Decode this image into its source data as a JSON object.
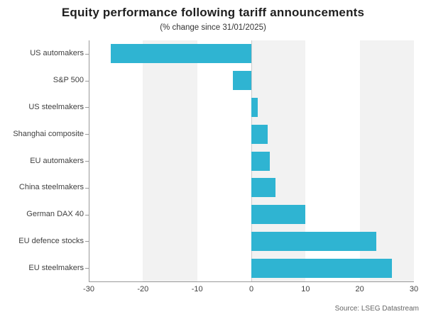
{
  "header": {
    "title": "Equity performance following tariff announcements",
    "subtitle": "(% change since 31/01/2025)"
  },
  "source_note": "Source: LSEG Datastream",
  "chart_data": {
    "type": "bar",
    "orientation": "horizontal",
    "title": "Equity performance following tariff announcements",
    "subtitle": "(% change since 31/01/2025)",
    "categories": [
      "US automakers",
      "S&P 500",
      "US steelmakers",
      "Shanghai composite",
      "EU automakers",
      "China steelmakers",
      "German DAX 40",
      "EU defence stocks",
      "EU steelmakers"
    ],
    "values": [
      -26,
      -3.4,
      1.2,
      3,
      3.4,
      4.4,
      10,
      23,
      26
    ],
    "xlabel": "",
    "ylabel": "",
    "xlim": [
      -30,
      30
    ],
    "xticks": [
      -30,
      -20,
      -10,
      0,
      10,
      20,
      30
    ],
    "legend": "none",
    "grid": "alternating vertical shaded bands between ticks",
    "source": "Source: LSEG Datastream",
    "colors": {
      "bar": "#2fb4d2",
      "band": "#f2f2f2",
      "zero_line": "#cccccc",
      "axis_line": "#999999",
      "tick_text": "#404040",
      "title_text": "#1f1f1f",
      "source_text": "#666666"
    }
  }
}
